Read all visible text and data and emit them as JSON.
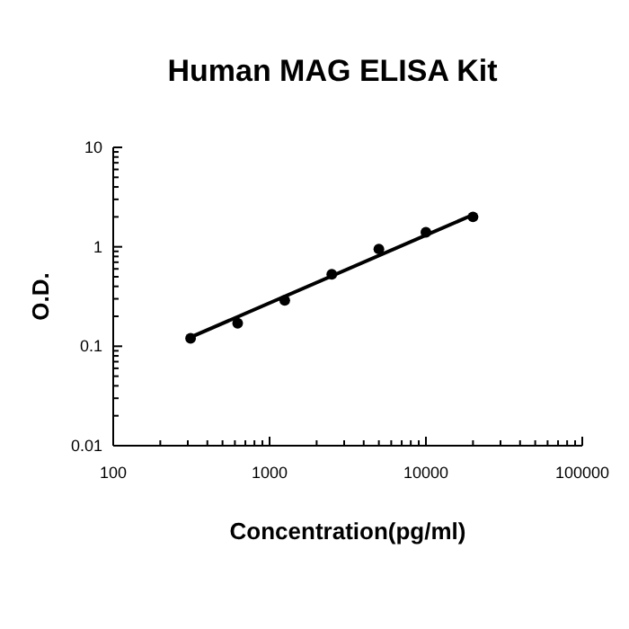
{
  "chart_data": {
    "type": "scatter",
    "title": "Human MAG ELISA Kit",
    "xlabel": "Concentration(pg/ml)",
    "ylabel": "O.D.",
    "log": "xy",
    "marker": "circle",
    "grid": false,
    "xlim": [
      100,
      100000
    ],
    "ylim": [
      0.01,
      10
    ],
    "xticks": [
      100,
      {
        "value": 200,
        "label": null
      },
      {
        "value": 300,
        "label": null
      },
      {
        "value": 400,
        "label": null
      },
      {
        "value": 500,
        "label": null
      },
      {
        "value": 600,
        "label": null
      },
      {
        "value": 700,
        "label": null
      },
      {
        "value": 800,
        "label": null
      },
      {
        "value": 900,
        "label": null
      },
      1000,
      {
        "value": 2000,
        "label": null
      },
      {
        "value": 3000,
        "label": null
      },
      {
        "value": 4000,
        "label": null
      },
      {
        "value": 5000,
        "label": null
      },
      {
        "value": 6000,
        "label": null
      },
      {
        "value": 7000,
        "label": null
      },
      {
        "value": 8000,
        "label": null
      },
      {
        "value": 9000,
        "label": null
      },
      10000,
      {
        "value": 20000,
        "label": null
      },
      {
        "value": 30000,
        "label": null
      },
      {
        "value": 40000,
        "label": null
      },
      {
        "value": 50000,
        "label": null
      },
      {
        "value": 60000,
        "label": null
      },
      {
        "value": 70000,
        "label": null
      },
      {
        "value": 80000,
        "label": null
      },
      {
        "value": 90000,
        "label": null
      },
      100000
    ],
    "yticks": [
      0.01,
      {
        "value": 0.02,
        "label": null
      },
      {
        "value": 0.03,
        "label": null
      },
      {
        "value": 0.04,
        "label": null
      },
      {
        "value": 0.05,
        "label": null
      },
      {
        "value": 0.06,
        "label": null
      },
      {
        "value": 0.07,
        "label": null
      },
      {
        "value": 0.08,
        "label": null
      },
      {
        "value": 0.09,
        "label": null
      },
      0.1,
      {
        "value": 0.2,
        "label": null
      },
      {
        "value": 0.3,
        "label": null
      },
      {
        "value": 0.4,
        "label": null
      },
      {
        "value": 0.5,
        "label": null
      },
      {
        "value": 0.6,
        "label": null
      },
      {
        "value": 0.7,
        "label": null
      },
      {
        "value": 0.8,
        "label": null
      },
      {
        "value": 0.9,
        "label": null
      },
      1,
      {
        "value": 2,
        "label": null
      },
      {
        "value": 3,
        "label": null
      },
      {
        "value": 4,
        "label": null
      },
      {
        "value": 5,
        "label": null
      },
      {
        "value": 6,
        "label": null
      },
      {
        "value": 7,
        "label": null
      },
      {
        "value": 8,
        "label": null
      },
      {
        "value": 9,
        "label": null
      },
      10
    ],
    "series": [
      {
        "color": "#000000",
        "x": [
          312.5,
          625,
          1250,
          2500,
          5000,
          10000,
          20000
        ],
        "values": [
          0.12,
          0.17,
          0.29,
          0.53,
          0.95,
          1.4,
          2.0
        ]
      },
      {
        "type": "line",
        "color": "#000000",
        "marker": "none",
        "x": [
          300,
          20000
        ],
        "values": [
          0.12,
          2.1
        ]
      }
    ]
  }
}
